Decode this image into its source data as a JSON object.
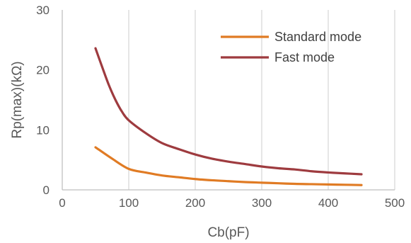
{
  "chart_data": {
    "type": "line",
    "title": "",
    "xlabel": "Cb(pF)",
    "ylabel": "Rp(max)(kΩ)",
    "xlim": [
      0,
      500
    ],
    "ylim": [
      0,
      30
    ],
    "xticks": [
      0,
      100,
      200,
      300,
      400,
      500
    ],
    "yticks": [
      0,
      10,
      20,
      30
    ],
    "x_tick_labels": [
      "0",
      "100",
      "200",
      "300",
      "400",
      "500"
    ],
    "y_tick_labels": [
      "0",
      "10",
      "20",
      "30"
    ],
    "grid": {
      "vertical": true,
      "horizontal": false
    },
    "legend": {
      "position": "top-right"
    },
    "series": [
      {
        "name": "Standard mode",
        "color": "#E07B24",
        "x": [
          50,
          75,
          100,
          125,
          150,
          175,
          200,
          225,
          250,
          275,
          300,
          325,
          350,
          375,
          400,
          425,
          450
        ],
        "y": [
          7.1,
          5.2,
          3.5,
          2.9,
          2.4,
          2.1,
          1.8,
          1.6,
          1.45,
          1.3,
          1.2,
          1.1,
          1.0,
          0.95,
          0.9,
          0.85,
          0.8
        ]
      },
      {
        "name": "Fast mode",
        "color": "#9E3B3F",
        "x": [
          50,
          60,
          70,
          80,
          90,
          100,
          125,
          150,
          175,
          200,
          225,
          250,
          275,
          300,
          325,
          350,
          375,
          400,
          425,
          450
        ],
        "y": [
          23.6,
          20.5,
          17.5,
          15.0,
          13.0,
          11.6,
          9.5,
          7.8,
          6.8,
          5.9,
          5.2,
          4.7,
          4.3,
          3.9,
          3.6,
          3.4,
          3.1,
          2.9,
          2.75,
          2.6
        ]
      }
    ]
  }
}
